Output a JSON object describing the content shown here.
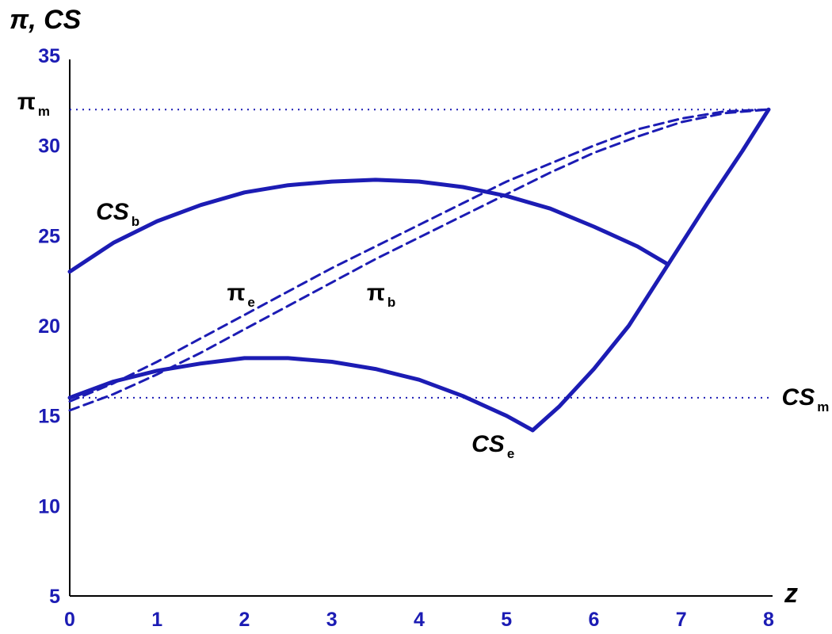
{
  "chart_data": {
    "type": "line",
    "title": "",
    "xlabel": "z",
    "ylabel": "π, CS",
    "xlim": [
      0,
      8
    ],
    "ylim": [
      5,
      35
    ],
    "x_ticks": [
      "0",
      "1",
      "2",
      "3",
      "4",
      "5",
      "6",
      "7",
      "8"
    ],
    "y_ticks": [
      "5",
      "10",
      "15",
      "20",
      "25",
      "30",
      "35"
    ],
    "grid": false,
    "colors": {
      "curve": "#1c1cb4",
      "axis": "#000000",
      "tick_label": "#1c1cb4",
      "label": "#000000"
    },
    "reference_lines": [
      {
        "label": "π",
        "sub": "m",
        "y": 32,
        "style": "dotted"
      },
      {
        "label": "CS",
        "sub": "m",
        "y": 16,
        "style": "dotted"
      }
    ],
    "series": [
      {
        "label": "CS",
        "sub": "b",
        "style": "solid",
        "x": [
          0,
          0.5,
          1,
          1.5,
          2,
          2.5,
          3,
          3.5,
          4,
          4.5,
          5,
          5.5,
          6,
          6.5,
          6.85
        ],
        "y": [
          23.0,
          24.6,
          25.8,
          26.7,
          27.4,
          27.8,
          28.0,
          28.1,
          28.0,
          27.7,
          27.2,
          26.5,
          25.5,
          24.4,
          23.4
        ]
      },
      {
        "label": "CS",
        "sub": "e",
        "style": "solid",
        "x": [
          0,
          0.5,
          1,
          1.5,
          2,
          2.5,
          3,
          3.5,
          4,
          4.5,
          5,
          5.3
        ],
        "y": [
          16.0,
          16.9,
          17.5,
          17.9,
          18.2,
          18.2,
          18.0,
          17.6,
          17.0,
          16.1,
          15.0,
          14.2
        ]
      },
      {
        "label": "",
        "sub": "",
        "style": "solid",
        "x": [
          5.3,
          5.6,
          6.0,
          6.4,
          6.85,
          7.3,
          7.7,
          8.0
        ],
        "y": [
          14.2,
          15.5,
          17.6,
          20.0,
          23.4,
          26.8,
          29.7,
          32.0
        ]
      },
      {
        "label": "π",
        "sub": "e",
        "style": "dashed",
        "x": [
          0,
          0.5,
          1,
          1.5,
          2,
          2.5,
          3,
          3.5,
          4,
          4.5,
          5,
          5.5,
          6,
          6.5,
          7,
          7.5,
          8
        ],
        "y": [
          15.8,
          16.8,
          18.0,
          19.3,
          20.6,
          21.9,
          23.2,
          24.4,
          25.6,
          26.8,
          28.0,
          29.0,
          30.0,
          30.9,
          31.5,
          31.9,
          32.0
        ]
      },
      {
        "label": "π",
        "sub": "b",
        "style": "dashed",
        "x": [
          0,
          0.5,
          1,
          1.5,
          2,
          2.5,
          3,
          3.5,
          4,
          4.5,
          5,
          5.5,
          6,
          6.5,
          7,
          7.5,
          8
        ],
        "y": [
          15.3,
          16.2,
          17.3,
          18.5,
          19.8,
          21.1,
          22.4,
          23.7,
          24.9,
          26.1,
          27.3,
          28.5,
          29.6,
          30.5,
          31.3,
          31.8,
          32.0
        ]
      }
    ],
    "annotations": [
      {
        "label": "CS",
        "sub": "b",
        "target_series": 0,
        "x": 0.3,
        "y": 25.9
      },
      {
        "label": "π",
        "sub": "e",
        "target_series": 3,
        "x": 1.8,
        "y": 21.4
      },
      {
        "label": "π",
        "sub": "b",
        "target_series": 4,
        "x": 3.4,
        "y": 21.4
      },
      {
        "label": "CS",
        "sub": "e",
        "target_series": 1,
        "x": 4.6,
        "y": 13.0
      },
      {
        "label": "π",
        "sub": "m",
        "target_ref": 0,
        "x": -0.6,
        "y": 32.0
      },
      {
        "label": "CS",
        "sub": "m",
        "target_ref": 1,
        "x": 8.15,
        "y": 15.6
      }
    ]
  }
}
